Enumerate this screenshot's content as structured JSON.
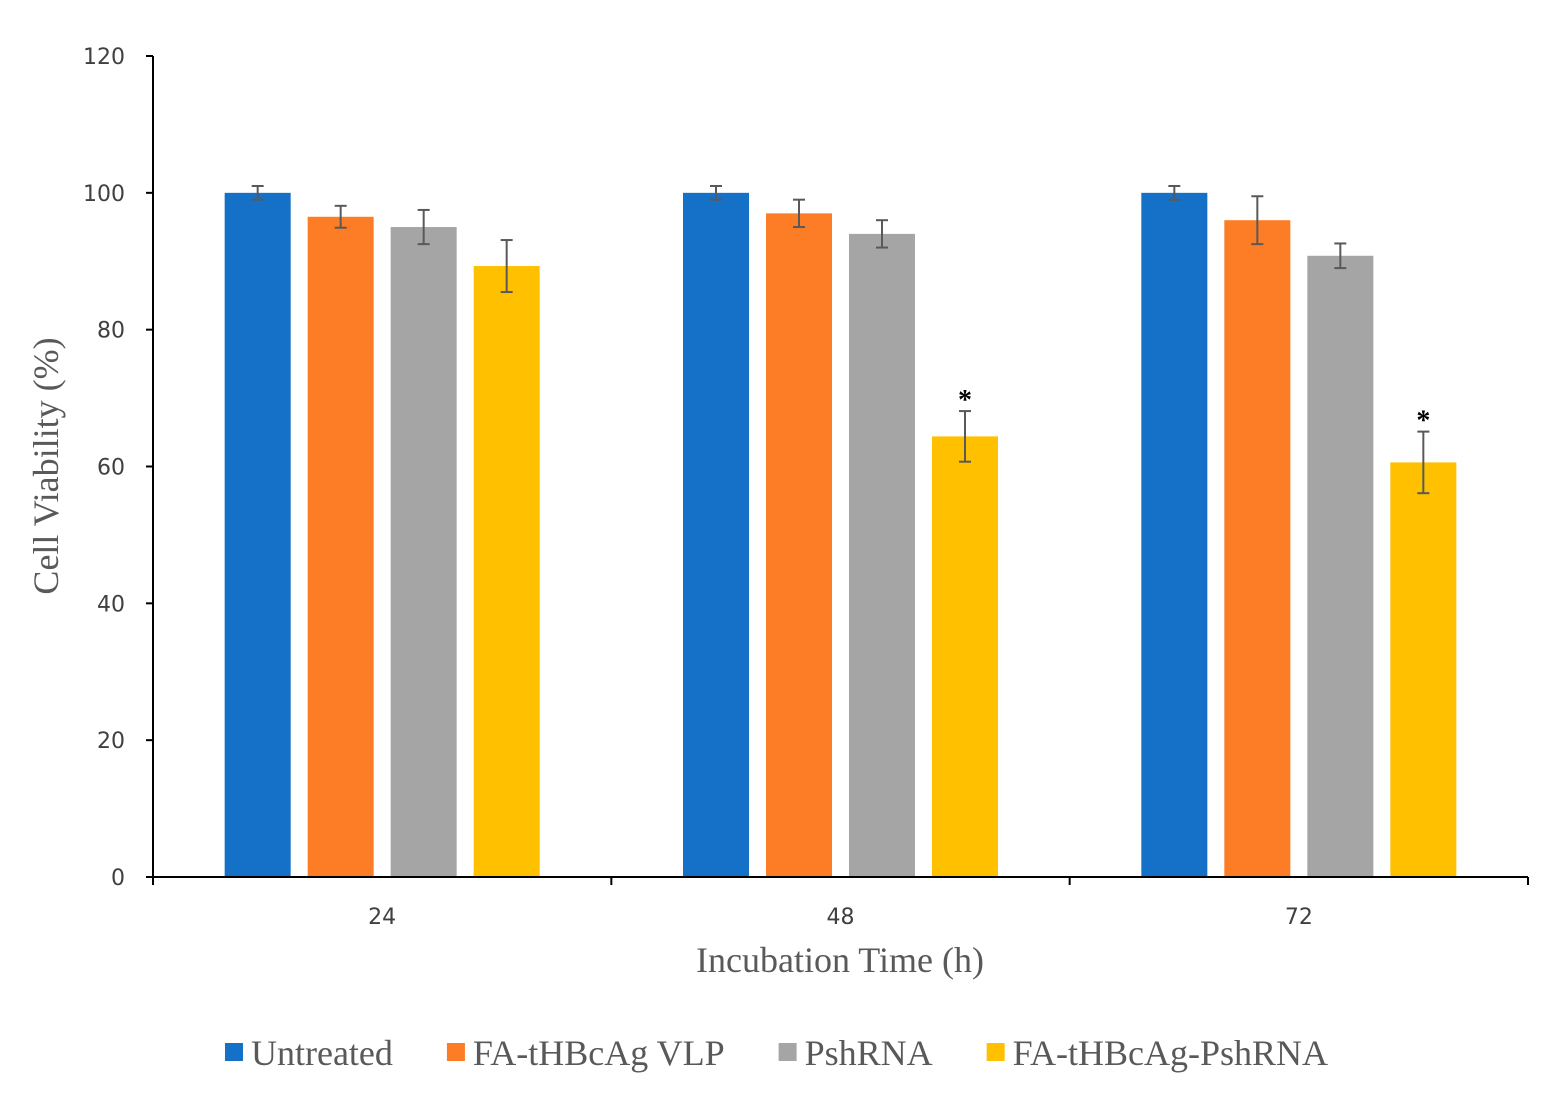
{
  "chart_data": {
    "type": "bar",
    "title": "",
    "xlabel": "Incubation Time (h)",
    "ylabel": "Cell Viability (%)",
    "ylim": [
      0,
      120
    ],
    "yticks": [
      "0",
      "20",
      "40",
      "60",
      "80",
      "100",
      "120"
    ],
    "categories": [
      "24",
      "48",
      "72"
    ],
    "grid": false,
    "legend_position": "bottom",
    "series": [
      {
        "name": "Untreated",
        "color": "#1570C8",
        "values": [
          100,
          100,
          100
        ],
        "errors": [
          1.0,
          1.0,
          1.0
        ],
        "annotations": [
          "",
          "",
          ""
        ]
      },
      {
        "name": "FA-tHBcAg VLP",
        "color": "#FC7D26",
        "values": [
          96.5,
          97,
          96
        ],
        "errors": [
          1.6,
          2.0,
          3.5
        ],
        "annotations": [
          "",
          "",
          ""
        ]
      },
      {
        "name": "PshRNA",
        "color": "#A5A5A5",
        "values": [
          95,
          94,
          90.8
        ],
        "errors": [
          2.5,
          2.0,
          1.8
        ],
        "annotations": [
          "",
          "",
          ""
        ]
      },
      {
        "name": "FA-tHBcAg-PshRNA",
        "color": "#FFC000",
        "values": [
          89.3,
          64.4,
          60.6
        ],
        "errors": [
          3.8,
          3.7,
          4.5
        ],
        "annotations": [
          "",
          "*",
          "*"
        ]
      }
    ]
  }
}
